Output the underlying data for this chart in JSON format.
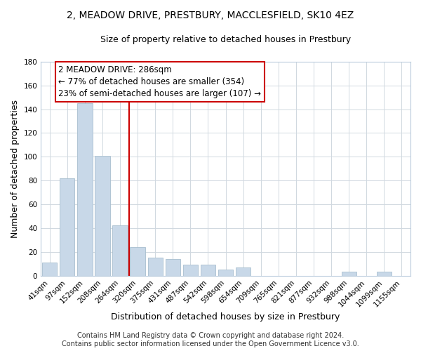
{
  "title": "2, MEADOW DRIVE, PRESTBURY, MACCLESFIELD, SK10 4EZ",
  "subtitle": "Size of property relative to detached houses in Prestbury",
  "xlabel": "Distribution of detached houses by size in Prestbury",
  "ylabel": "Number of detached properties",
  "categories": [
    "41sqm",
    "97sqm",
    "152sqm",
    "208sqm",
    "264sqm",
    "320sqm",
    "375sqm",
    "431sqm",
    "487sqm",
    "542sqm",
    "598sqm",
    "654sqm",
    "709sqm",
    "765sqm",
    "821sqm",
    "877sqm",
    "932sqm",
    "988sqm",
    "1044sqm",
    "1099sqm",
    "1155sqm"
  ],
  "values": [
    11,
    82,
    145,
    101,
    42,
    24,
    15,
    14,
    9,
    9,
    5,
    7,
    0,
    0,
    0,
    0,
    0,
    3,
    0,
    3,
    0
  ],
  "bar_color": "#c8d8e8",
  "bar_edge_color": "#a8bece",
  "vline_color": "#cc0000",
  "vline_index": 4.5,
  "ylim": [
    0,
    180
  ],
  "yticks": [
    0,
    20,
    40,
    60,
    80,
    100,
    120,
    140,
    160,
    180
  ],
  "annotation_text_line1": "2 MEADOW DRIVE: 286sqm",
  "annotation_text_line2": "← 77% of detached houses are smaller (354)",
  "annotation_text_line3": "23% of semi-detached houses are larger (107) →",
  "footer_line1": "Contains HM Land Registry data © Crown copyright and database right 2024.",
  "footer_line2": "Contains public sector information licensed under the Open Government Licence v3.0.",
  "background_color": "#ffffff",
  "grid_color": "#d0d8e0",
  "title_fontsize": 10,
  "subtitle_fontsize": 9,
  "axis_label_fontsize": 9,
  "tick_fontsize": 7.5,
  "annotation_fontsize": 8.5,
  "footer_fontsize": 7
}
